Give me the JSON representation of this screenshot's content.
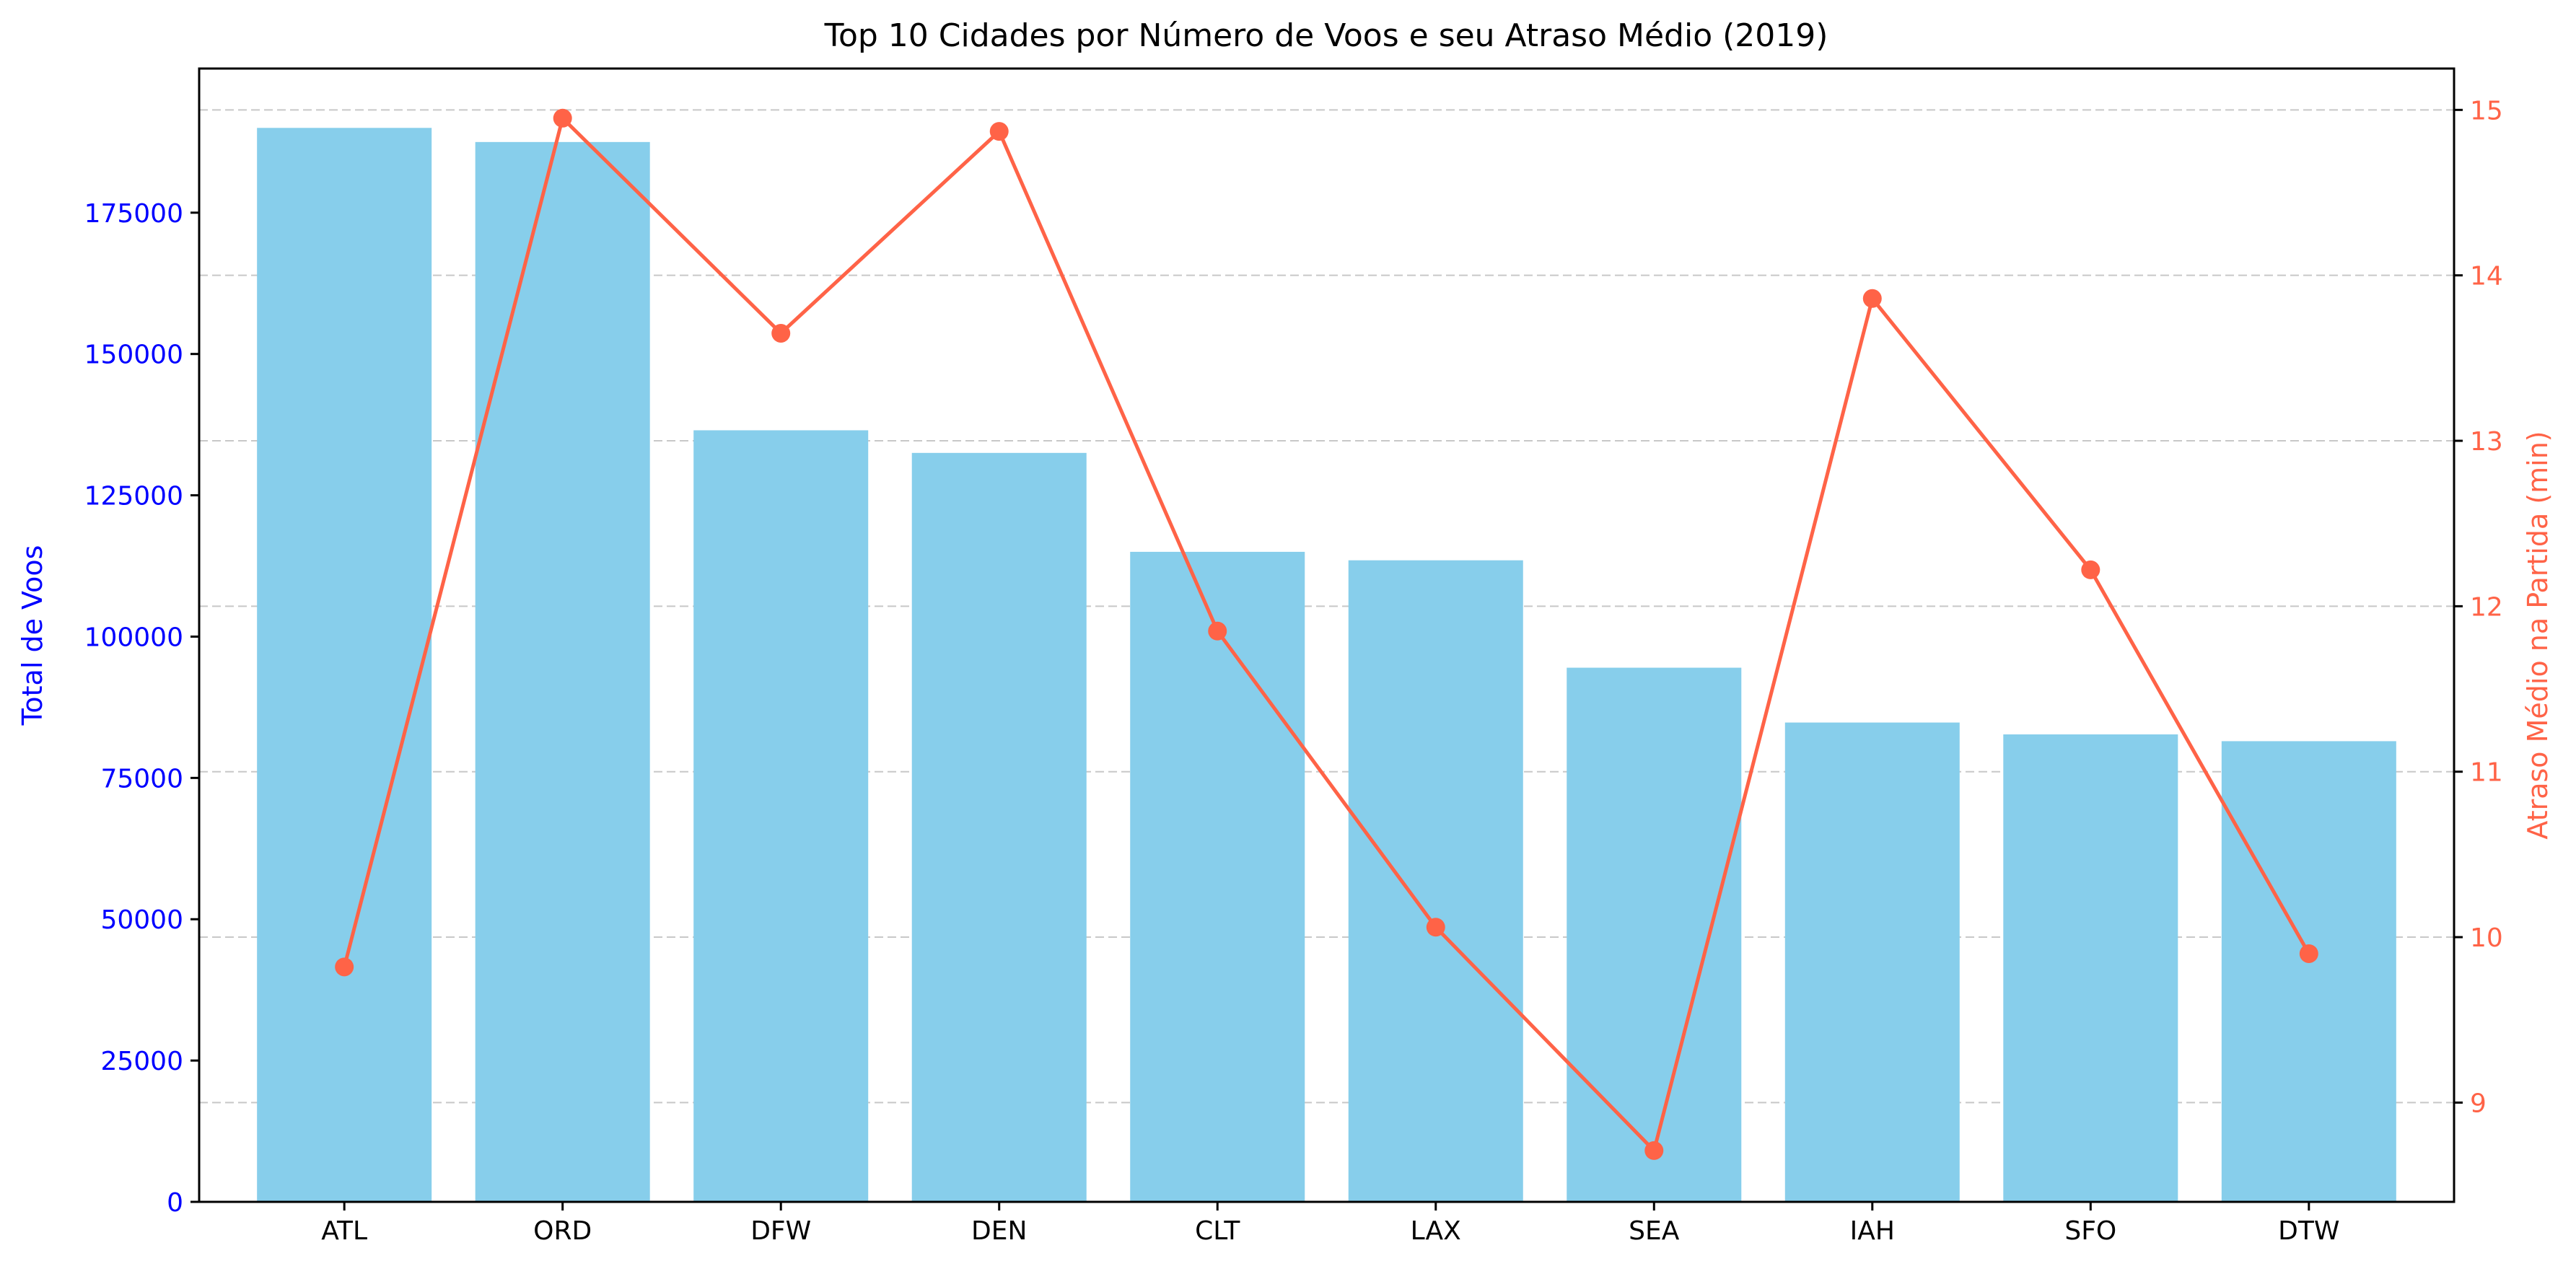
{
  "chart_data": {
    "type": "bar+line",
    "title": "Top 10 Cidades por Número de Voos e seu Atraso Médio (2019)",
    "categories": [
      "ATL",
      "ORD",
      "DFW",
      "DEN",
      "CLT",
      "LAX",
      "SEA",
      "IAH",
      "SFO",
      "DTW"
    ],
    "series": [
      {
        "type": "bar",
        "axis": "left",
        "color": "#87CEEB",
        "values": [
          190000,
          187500,
          136500,
          132500,
          115000,
          113500,
          94500,
          84800,
          82700,
          81500
        ]
      },
      {
        "type": "line",
        "axis": "right",
        "color": "#FF6347",
        "marker": "circle",
        "values": [
          9.82,
          14.95,
          13.65,
          14.87,
          11.85,
          10.06,
          8.71,
          13.86,
          12.22,
          9.9
        ]
      }
    ],
    "y_left": {
      "label": "Total de Voos",
      "color": "#0000FF",
      "ylim": [
        0,
        200500
      ],
      "ticks": [
        0,
        25000,
        50000,
        75000,
        100000,
        125000,
        150000,
        175000
      ]
    },
    "y_right": {
      "label": "Atraso Médio na Partida (min)",
      "color": "#FF6347",
      "ylim": [
        8.4,
        15.25
      ],
      "ticks": [
        9,
        10,
        11,
        12,
        13,
        14,
        15
      ]
    },
    "grid": "horizontal-dashed-right-axis",
    "legend": "none"
  }
}
